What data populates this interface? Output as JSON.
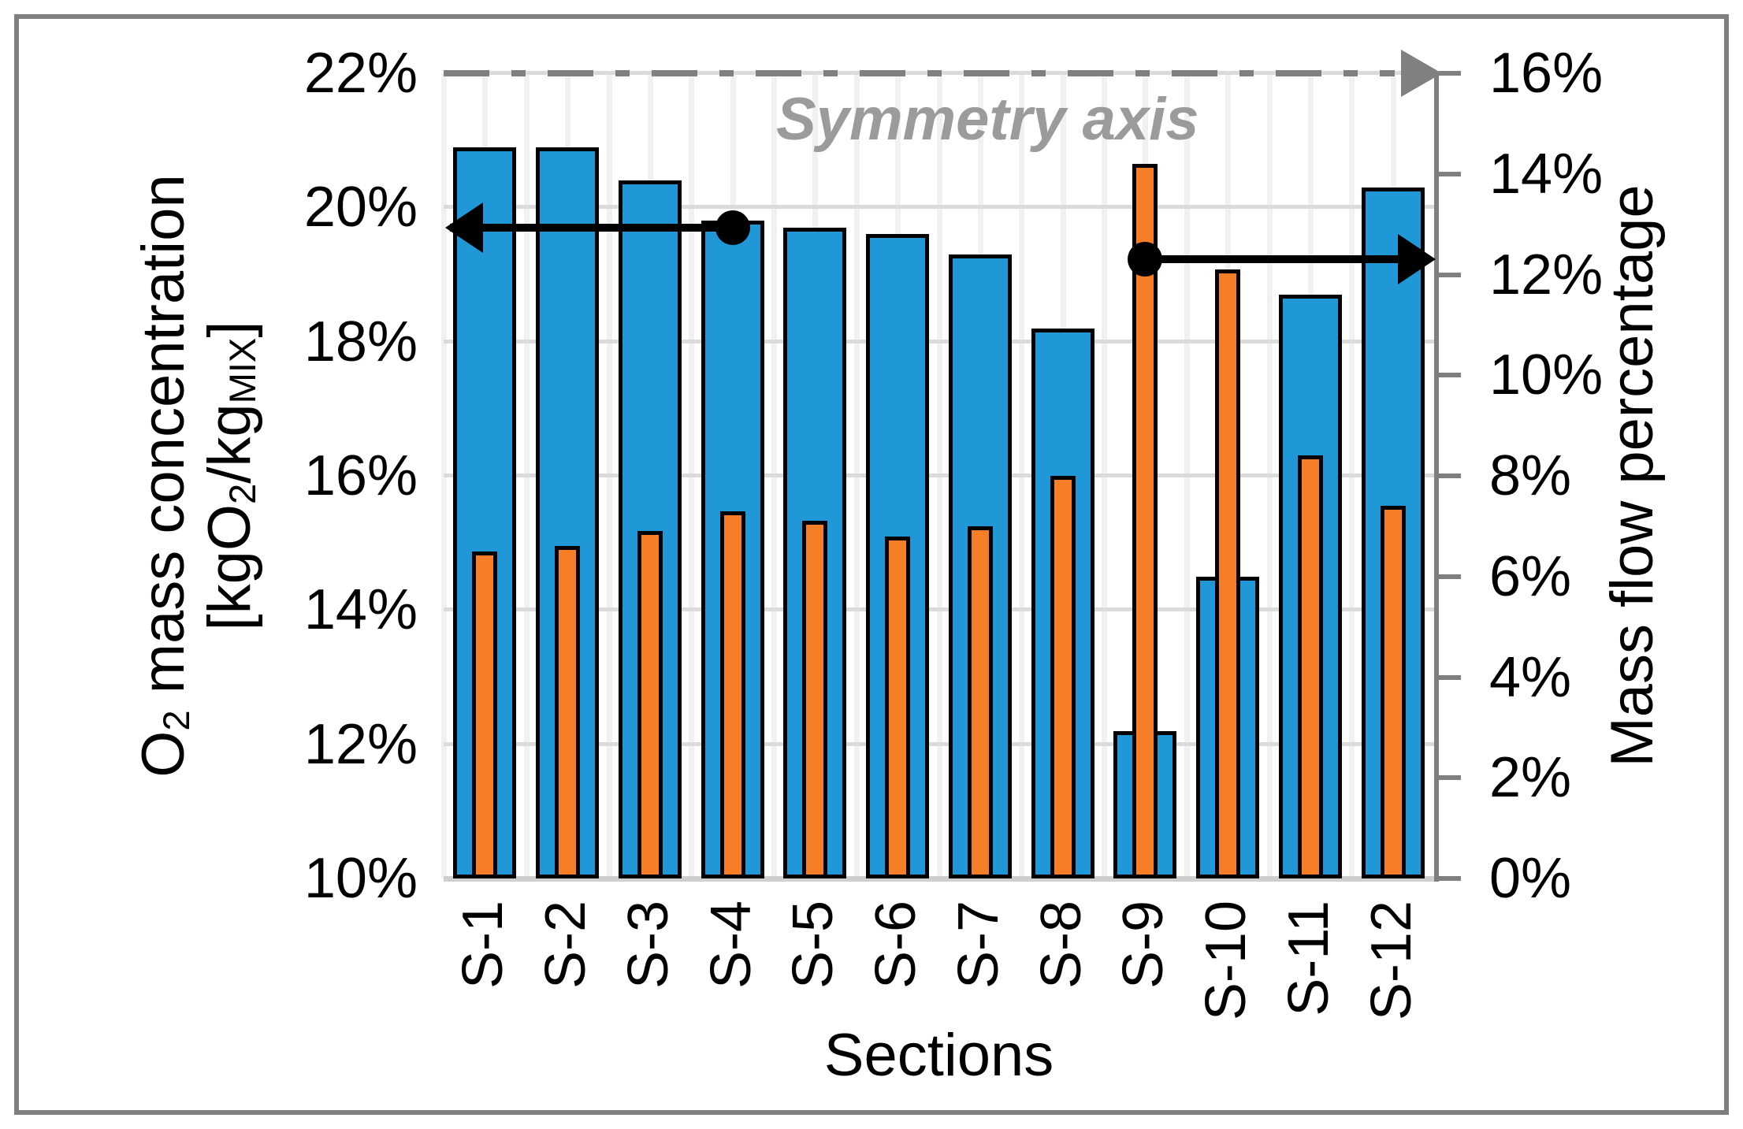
{
  "frame": {
    "border_color": "#7f7f7f",
    "background": "#ffffff"
  },
  "chart_data": {
    "type": "bar",
    "categories": [
      "S-1",
      "S-2",
      "S-3",
      "S-4",
      "S-5",
      "S-6",
      "S-7",
      "S-8",
      "S-9",
      "S-10",
      "S-11",
      "S-12"
    ],
    "series": [
      {
        "name": "O2 mass concentration",
        "axis": "left",
        "color": "#2098d8",
        "values": [
          20.9,
          20.9,
          20.4,
          19.8,
          19.7,
          19.6,
          19.3,
          18.2,
          12.2,
          14.5,
          18.7,
          20.3
        ]
      },
      {
        "name": "Mass flow percentage",
        "axis": "right",
        "color": "#f67e26",
        "values": [
          6.5,
          6.6,
          6.9,
          7.3,
          7.1,
          6.8,
          7.0,
          8.0,
          14.2,
          12.1,
          8.4,
          7.4
        ]
      }
    ],
    "xlabel": "Sections",
    "left_axis": {
      "min": 10,
      "max": 22,
      "step": 2,
      "tick_labels": [
        "22%",
        "20%",
        "18%",
        "16%",
        "14%",
        "12%",
        "10%"
      ],
      "title_line1_parts": [
        {
          "t": "O"
        },
        {
          "t": "2",
          "sub": true
        },
        {
          "t": " mass concentration"
        }
      ],
      "title_line2_parts": [
        {
          "t": "[kgO"
        },
        {
          "t": "2",
          "sub": true
        },
        {
          "t": "/kg"
        },
        {
          "t": "MIX",
          "sub": true
        },
        {
          "t": "]"
        }
      ]
    },
    "right_axis": {
      "min": 0,
      "max": 16,
      "step": 2,
      "tick_labels": [
        "16%",
        "14%",
        "12%",
        "10%",
        "8%",
        "6%",
        "4%",
        "2%",
        "0%"
      ],
      "title": "Mass flow percentage"
    },
    "grid": true,
    "legend": "none",
    "annotations": {
      "symmetry_label": "Symmetry axis",
      "symmetry_line_at_left_value": 22,
      "left_arrow": {
        "at_left_value": 19.7,
        "from_category": "S-4",
        "points_to": "left-axis"
      },
      "right_arrow": {
        "at_right_value": 12.3,
        "from_category": "S-9",
        "points_to": "right-axis"
      }
    },
    "colors": {
      "blue_bar": "#2098d8",
      "orange_bar": "#f67e26",
      "bar_border": "#000000",
      "h_grid": "#dbdbdb",
      "v_grid": "#f1f1f1",
      "right_axis": "#7f7f7f",
      "symmetry_gray": "#808080",
      "symmetry_text": "#9b9b9b",
      "outer_border": "#7f7f7f"
    }
  }
}
